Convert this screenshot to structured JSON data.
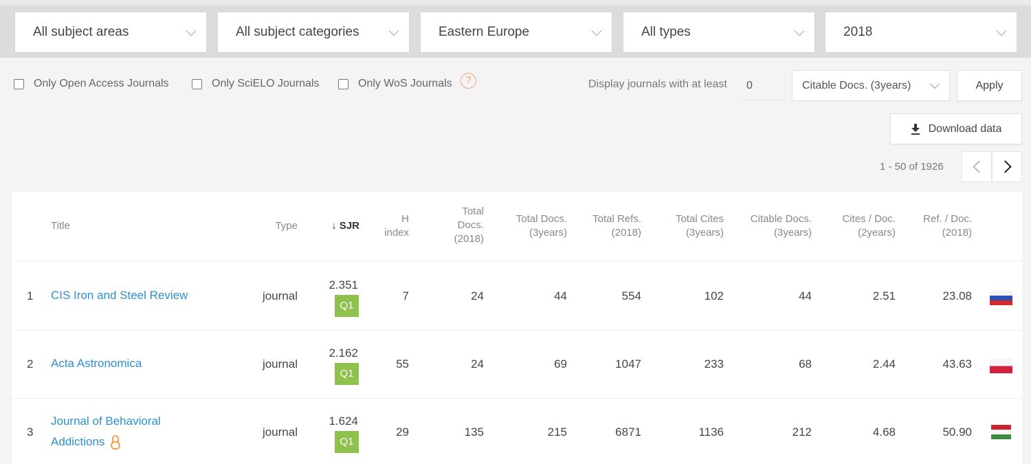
{
  "filters": {
    "subject_areas": "All subject areas",
    "subject_categories": "All subject categories",
    "region": "Eastern Europe",
    "types": "All types",
    "year": "2018"
  },
  "options": {
    "open_access": "Only Open Access Journals",
    "scielo": "Only SciELO Journals",
    "wos": "Only WoS Journals",
    "help": "?",
    "display_at_least": "Display journals with at least",
    "min_value": "0",
    "citable_select": "Citable Docs. (3years)",
    "apply": "Apply",
    "download": "Download data"
  },
  "pagination": {
    "range": "1 - 50 of 1926"
  },
  "columns": {
    "title": "Title",
    "type": "Type",
    "sjr": "↓ SJR",
    "h_index": [
      "H",
      "index"
    ],
    "total_docs": [
      "Total",
      "Docs.",
      "(2018)"
    ],
    "total_docs_3y": [
      "Total Docs.",
      "(3years)"
    ],
    "total_refs": [
      "Total Refs.",
      "(2018)"
    ],
    "total_cites": [
      "Total Cites",
      "(3years)"
    ],
    "citable_docs": [
      "Citable Docs.",
      "(3years)"
    ],
    "cites_doc": [
      "Cites / Doc.",
      "(2years)"
    ],
    "ref_doc": [
      "Ref. / Doc.",
      "(2018)"
    ]
  },
  "rows": [
    {
      "rank": "1",
      "title": [
        "CIS Iron and Steel Review"
      ],
      "type": "journal",
      "sjr": "2.351",
      "quartile": "Q1",
      "h": "7",
      "docs": "24",
      "docs3": "44",
      "refs": "554",
      "cites": "102",
      "citable": "44",
      "cites_doc": "2.51",
      "ref_doc": "23.08",
      "flag": "russia"
    },
    {
      "rank": "2",
      "title": [
        "Acta Astronomica"
      ],
      "type": "journal",
      "sjr": "2.162",
      "quartile": "Q1",
      "h": "55",
      "docs": "24",
      "docs3": "69",
      "refs": "1047",
      "cites": "233",
      "citable": "68",
      "cites_doc": "2.44",
      "ref_doc": "43.63",
      "flag": "poland"
    },
    {
      "rank": "3",
      "title": [
        "Journal of Behavioral",
        "Addictions"
      ],
      "type": "journal",
      "sjr": "1.624",
      "quartile": "Q1",
      "h": "29",
      "docs": "135",
      "docs3": "215",
      "refs": "6871",
      "cites": "1136",
      "citable": "212",
      "cites_doc": "4.68",
      "ref_doc": "50.90",
      "flag": "hungary",
      "open_access_icon": "open-access-lock-icon"
    }
  ]
}
